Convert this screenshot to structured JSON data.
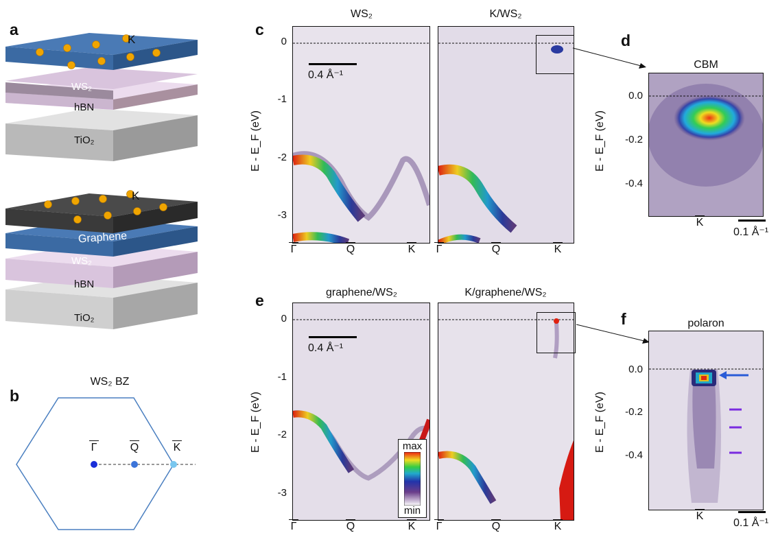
{
  "panel_labels": {
    "a": "a",
    "b": "b",
    "c": "c",
    "d": "d",
    "e": "e",
    "f": "f"
  },
  "stack1": {
    "top_label": "K",
    "layers": [
      "WS₂",
      "hBN",
      "TiO₂"
    ]
  },
  "stack2": {
    "top_label": "K",
    "layers": [
      "Graphene",
      "WS₂",
      "hBN",
      "TiO₂"
    ]
  },
  "bz": {
    "title": "WS₂ BZ",
    "points": [
      "Γ",
      "Q",
      "K"
    ]
  },
  "c": {
    "title_left": "WS₂",
    "title_right": "K/WS₂",
    "ylabel": "E - E_F (eV)",
    "yticks": [
      "0",
      "-1",
      "-2",
      "-3"
    ],
    "scale": "0.4 Å⁻¹",
    "xticks": [
      "Γ",
      "Q",
      "K"
    ]
  },
  "d": {
    "title": "CBM",
    "ylabel": "E - E_F (eV)",
    "yticks": [
      "0.0",
      "-0.2",
      "-0.4"
    ],
    "xtick": "K",
    "scale": "0.1 Å⁻¹"
  },
  "e": {
    "title_left": "graphene/WS₂",
    "title_right": "K/graphene/WS₂",
    "ylabel": "E - E_F (eV)",
    "yticks": [
      "0",
      "-1",
      "-2",
      "-3"
    ],
    "scale": "0.4 Å⁻¹",
    "xticks": [
      "Γ",
      "Q",
      "K"
    ],
    "colorbar": {
      "max": "max",
      "min": "min"
    }
  },
  "f": {
    "title": "polaron",
    "ylabel": "E - E_F (eV)",
    "yticks": [
      "0.0",
      "-0.2",
      "-0.4"
    ],
    "xtick": "K",
    "scale": "0.1 Å⁻¹"
  },
  "colors": {
    "ws2_blue": "#3f6fa8",
    "hbn_pink": "#d9c4dd",
    "tio2_gray": "#c8c8c8",
    "graphene_dark": "#444444",
    "spectral_bg": "#e6e1ea",
    "arrow_blue": "#2a5bd7",
    "marker_purple": "#7a2be0"
  }
}
